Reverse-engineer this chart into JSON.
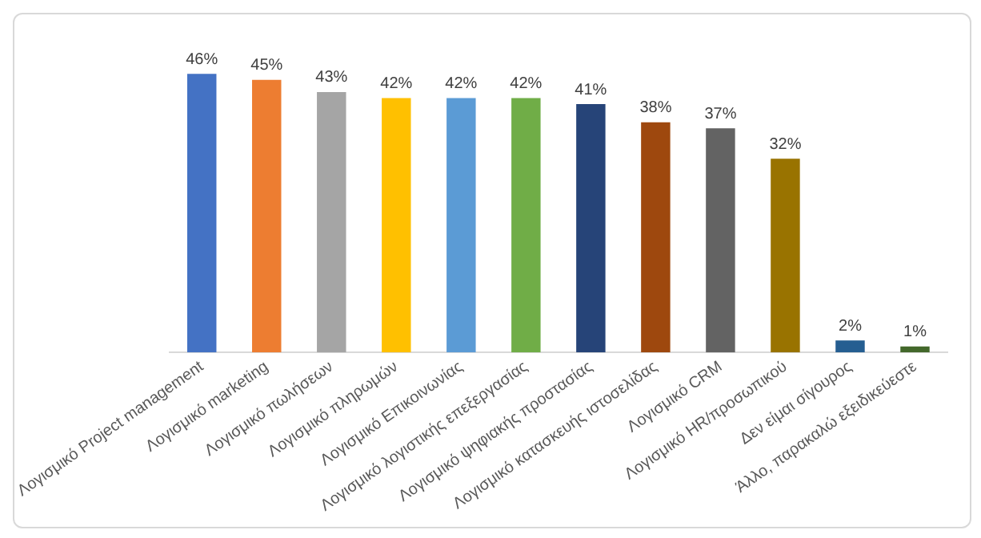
{
  "chart_data": {
    "type": "bar",
    "categories": [
      "Λογισμικό Project management",
      "Λογισμικό marketing",
      "Λογισμικό πωλήσεων",
      "Λογισμικό πληρωμών",
      "Λογισμικό Επικοινωνίας",
      "Λογισμικό λογιστικής επεξεργασίας",
      "Λογισμικό ψηφιακής προστασίας",
      "Λογισμικό κατασκευής ιστοσελίδας",
      "Λογισμικό CRM",
      "Λογισμικό HR/προσωπικού",
      "Δεν είμαι σίγουρος",
      "Άλλο, παρακαλώ εξειδικεύεστε"
    ],
    "values": [
      46,
      45,
      43,
      42,
      42,
      42,
      41,
      38,
      37,
      32,
      2,
      1
    ],
    "value_labels": [
      "46%",
      "45%",
      "43%",
      "42%",
      "42%",
      "42%",
      "41%",
      "38%",
      "37%",
      "32%",
      "2%",
      "1%"
    ],
    "colors": [
      "#4472c4",
      "#ed7d31",
      "#a5a5a5",
      "#ffc000",
      "#5b9bd5",
      "#70ad47",
      "#264478",
      "#9e480e",
      "#636363",
      "#997300",
      "#255e91",
      "#43682b"
    ],
    "grid": false,
    "legend": false
  }
}
